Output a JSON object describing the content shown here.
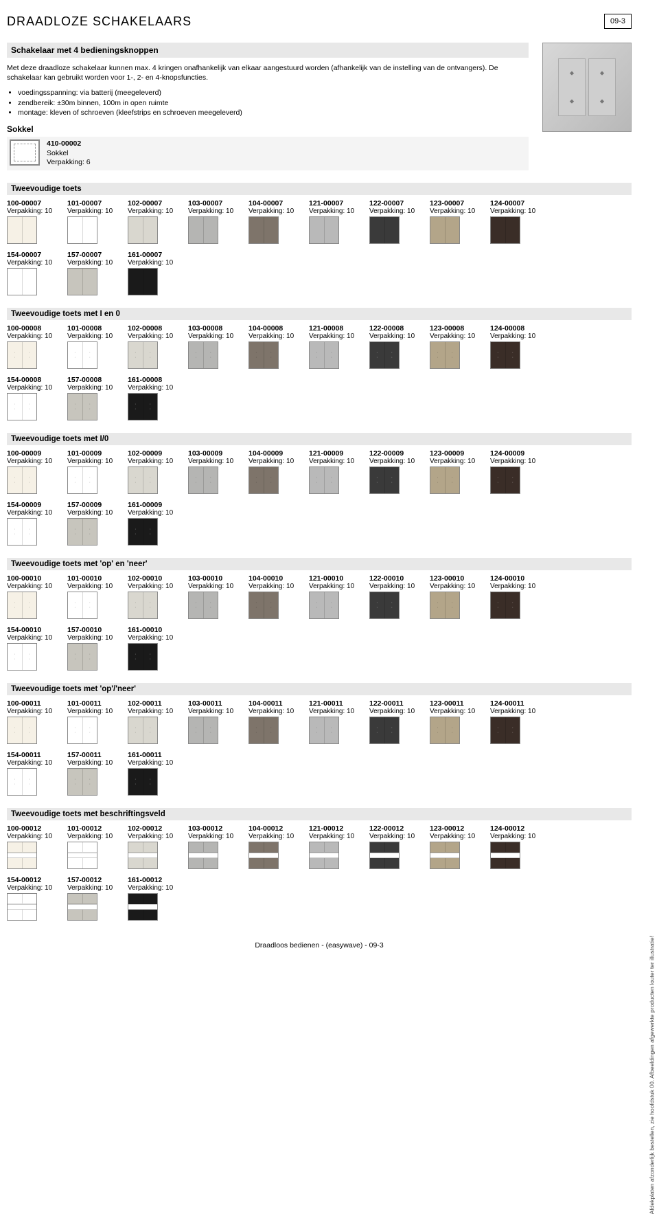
{
  "page": {
    "title": "DRAADLOZE SCHAKELAARS",
    "page_num": "09-3",
    "footer": "Draadloos bedienen - (easywave) - 09-3",
    "side_note": "Afdekplaten afzonderlijk bestellen, zie hoofdstuk 00. Afbeeldingen afgewerkte producten louter ter illustratie!"
  },
  "intro": {
    "heading": "Schakelaar met 4 bedieningsknoppen",
    "body": "Met deze draadloze schakelaar kunnen max. 4 kringen onafhankelijk van elkaar aangestuurd worden (afhankelijk van de instelling van de ontvangers). De schakelaar kan gebruikt worden voor 1-, 2- en 4-knopsfuncties.",
    "bullets": [
      "voedingsspanning: via batterij (meegeleverd)",
      "zendbereik: ±30m binnen, 100m in open ruimte",
      "montage: kleven of schroeven (kleefstrips en schroeven meegeleverd)"
    ]
  },
  "sokkel": {
    "label": "Sokkel",
    "code": "410-00002",
    "name": "Sokkel",
    "pack": "Verpakking: 6"
  },
  "pack_label": "Verpakking: 10",
  "colors": {
    "100": "#f6f1e6",
    "101": "#ffffff",
    "102": "#d9d7cf",
    "103": "#b5b5b3",
    "104": "#7e746a",
    "121": "#b9b9b9",
    "122": "#3a3a3a",
    "123": "#b3a589",
    "124": "#3a2d27",
    "154": "#ffffff",
    "157": "#c7c5bd",
    "161": "#1a1a1a"
  },
  "color_codes": [
    "100",
    "101",
    "102",
    "103",
    "104",
    "121",
    "122",
    "123",
    "124",
    "154",
    "157",
    "161"
  ],
  "groups": [
    {
      "heading": "Tweevoudige toets",
      "suffix": "00007",
      "style": "plain"
    },
    {
      "heading": "Tweevoudige toets met I en 0",
      "suffix": "00008",
      "style": "marks"
    },
    {
      "heading": "Tweevoudige toets met I/0",
      "suffix": "00009",
      "style": "marks"
    },
    {
      "heading": "Tweevoudige toets met 'op' en 'neer'",
      "suffix": "00010",
      "style": "marks"
    },
    {
      "heading": "Tweevoudige toets met 'op'/'neer'",
      "suffix": "00011",
      "style": "marks"
    },
    {
      "heading": "Tweevoudige toets met beschriftingsveld",
      "suffix": "00012",
      "style": "label"
    }
  ]
}
